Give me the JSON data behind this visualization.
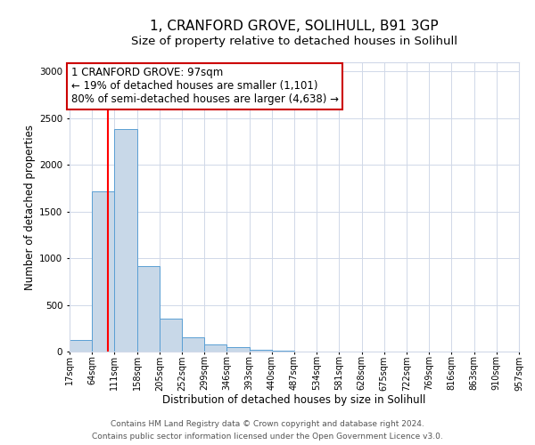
{
  "title": "1, CRANFORD GROVE, SOLIHULL, B91 3GP",
  "subtitle": "Size of property relative to detached houses in Solihull",
  "xlabel": "Distribution of detached houses by size in Solihull",
  "ylabel": "Number of detached properties",
  "bin_edges": [
    17,
    64,
    111,
    158,
    205,
    252,
    299,
    346,
    393,
    440,
    487,
    534,
    581,
    628,
    675,
    722,
    769,
    816,
    863,
    910,
    957
  ],
  "bar_heights": [
    120,
    1720,
    2380,
    920,
    350,
    155,
    80,
    45,
    15,
    5,
    2,
    2,
    0,
    0,
    0,
    0,
    0,
    0,
    0,
    0
  ],
  "bar_color": "#c8d8e8",
  "bar_edge_color": "#5a9fd4",
  "red_line_x": 97,
  "ylim": [
    0,
    3100
  ],
  "yticks": [
    0,
    500,
    1000,
    1500,
    2000,
    2500,
    3000
  ],
  "annotation_text": "1 CRANFORD GROVE: 97sqm\n← 19% of detached houses are smaller (1,101)\n80% of semi-detached houses are larger (4,638) →",
  "footer_line1": "Contains HM Land Registry data © Crown copyright and database right 2024.",
  "footer_line2": "Contains public sector information licensed under the Open Government Licence v3.0.",
  "background_color": "#ffffff",
  "grid_color": "#d0d8e8",
  "annotation_box_color": "#ffffff",
  "annotation_box_edge": "#cc0000",
  "title_fontsize": 11,
  "subtitle_fontsize": 9.5,
  "tick_label_fontsize": 7,
  "axis_label_fontsize": 8.5,
  "annotation_fontsize": 8.5,
  "footer_fontsize": 6.5
}
